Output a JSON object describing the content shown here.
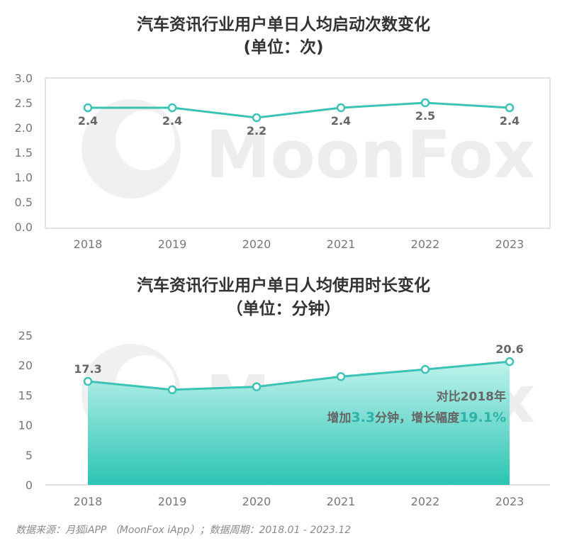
{
  "colors": {
    "line": "#3cc3b5",
    "area_top": "#bff2ec",
    "area_bottom": "#2bc4b3",
    "grid": "#d9d9d9"
  },
  "watermark": "MoonFox",
  "source": "数据来源：月狐iAPP （MoonFox iApp）；数据周期：2018.01 - 2023.12",
  "chart_data": [
    {
      "type": "line",
      "title": "汽车资讯行业用户单日人均启动次数变化",
      "subtitle": "(单位：次)",
      "categories": [
        "2018",
        "2019",
        "2020",
        "2021",
        "2022",
        "2023"
      ],
      "values": [
        2.4,
        2.4,
        2.2,
        2.4,
        2.5,
        2.4
      ],
      "data_labels": [
        "2.4",
        "2.4",
        "2.2",
        "2.4",
        "2.5",
        "2.4"
      ],
      "y_ticks": [
        "0.0",
        "0.5",
        "1.0",
        "1.5",
        "2.0",
        "2.5",
        "3.0"
      ],
      "ylim": [
        0,
        3
      ],
      "grid": false
    },
    {
      "type": "area",
      "title": "汽车资讯行业用户单日人均使用时长变化",
      "subtitle": "（单位：分钟）",
      "categories": [
        "2018",
        "2019",
        "2020",
        "2021",
        "2022",
        "2023"
      ],
      "values": [
        17.3,
        15.9,
        16.4,
        18.1,
        19.3,
        20.6
      ],
      "data_labels": [
        "17.3",
        "",
        "",
        "",
        "",
        "20.6"
      ],
      "y_ticks": [
        "0",
        "5",
        "10",
        "15",
        "20",
        "25"
      ],
      "ylim": [
        0,
        25
      ],
      "grid": false,
      "annotation": {
        "line1": "对比2018年",
        "part1": "增加",
        "val1": "3.3",
        "part2": "分钟，增长幅度",
        "val2": "19.1%"
      }
    }
  ]
}
